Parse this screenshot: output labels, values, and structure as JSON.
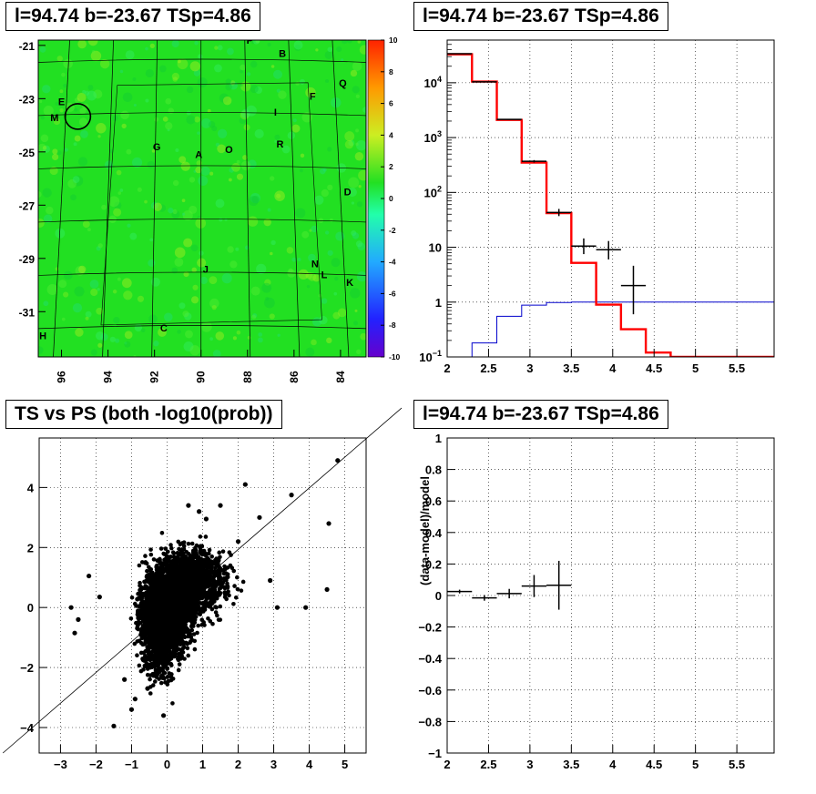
{
  "panels": {
    "map_title": "l=94.74 b=-23.67 TSp=4.86",
    "spectrum_title": "l=94.74 b=-23.67 TSp=4.86",
    "scatter_title": "TS vs PS (both -log10(prob))",
    "residual_title": "l=94.74 b=-23.67 TSp=4.86"
  },
  "colors": {
    "map_background": "#22e022",
    "model_line": "#ff0000",
    "background_line": "#0000cc",
    "data_points": "#000000"
  },
  "chart_data": [
    {
      "type": "heatmap",
      "title": "l=94.74 b=-23.67 TSp=4.86",
      "x_ticks": [
        "96",
        "94",
        "92",
        "90",
        "88",
        "86",
        "84"
      ],
      "x_tick_values": [
        96,
        94,
        92,
        90,
        88,
        86,
        84
      ],
      "xlim": [
        97.0,
        82.9
      ],
      "y_ticks": [
        "-21",
        "-23",
        "-25",
        "-27",
        "-29",
        "-31"
      ],
      "y_tick_values": [
        -21,
        -23,
        -25,
        -27,
        -29,
        -31
      ],
      "ylim": [
        -32.7,
        -20.8
      ],
      "colorbar_ticks": [
        "10",
        "8",
        "6",
        "4",
        "2",
        "0",
        "-2",
        "-4",
        "-6",
        "-8",
        "-10"
      ],
      "colorbar_range": [
        -10,
        10
      ],
      "source_labels": [
        {
          "text": "P",
          "l": 87.9,
          "b": -20.8
        },
        {
          "text": "B",
          "l": 86.5,
          "b": -21.3
        },
        {
          "text": "Q",
          "l": 83.9,
          "b": -22.4
        },
        {
          "text": "E",
          "l": 96.0,
          "b": -23.1
        },
        {
          "text": "F",
          "l": 85.2,
          "b": -22.9
        },
        {
          "text": "M",
          "l": 96.3,
          "b": -23.7
        },
        {
          "text": "I",
          "l": 86.8,
          "b": -23.5
        },
        {
          "text": "G",
          "l": 91.9,
          "b": -24.8
        },
        {
          "text": "R",
          "l": 86.6,
          "b": -24.7
        },
        {
          "text": "O",
          "l": 88.8,
          "b": -24.9
        },
        {
          "text": "A",
          "l": 90.1,
          "b": -25.1
        },
        {
          "text": "D",
          "l": 83.7,
          "b": -26.5
        },
        {
          "text": "N",
          "l": 85.1,
          "b": -29.2
        },
        {
          "text": "J",
          "l": 89.8,
          "b": -29.4
        },
        {
          "text": "L",
          "l": 84.7,
          "b": -29.6
        },
        {
          "text": "K",
          "l": 83.6,
          "b": -29.9
        },
        {
          "text": "C",
          "l": 91.6,
          "b": -31.6
        },
        {
          "text": "H",
          "l": 96.8,
          "b": -31.9
        }
      ],
      "marked_source": {
        "l": 95.3,
        "b": -23.67
      }
    },
    {
      "type": "line",
      "title": "l=94.74 b=-23.67 TSp=4.86",
      "y_scale": "log",
      "xlim": [
        2.0,
        5.95
      ],
      "ylim": [
        0.1,
        60000
      ],
      "x_ticks": [
        "2",
        "2.5",
        "3",
        "3.5",
        "4",
        "4.5",
        "5",
        "5.5"
      ],
      "x_tick_values": [
        2.0,
        2.5,
        3.0,
        3.5,
        4.0,
        4.5,
        5.0,
        5.5
      ],
      "y_ticks": [
        "10^-1",
        "1",
        "10",
        "10^2",
        "10^3",
        "10^4"
      ],
      "y_tick_values": [
        0.1,
        1,
        10,
        100,
        1000,
        10000
      ],
      "bin_edges": [
        2.0,
        2.3,
        2.6,
        2.9,
        3.2,
        3.5,
        3.8,
        4.1,
        4.4,
        4.7,
        5.0,
        5.3,
        5.6,
        5.95
      ],
      "series": [
        {
          "values": [
            33000,
            10500,
            2100,
            350,
            42,
            5.2,
            0.9,
            0.32,
            0.12,
            0.1,
            0.1,
            0.1,
            0.1
          ]
        },
        {
          "values": [
            0.05,
            0.18,
            0.55,
            0.88,
            0.98,
            1.0,
            1.0,
            1.0,
            1.0,
            1.0,
            1.0,
            1.0,
            1.0
          ]
        }
      ],
      "points": [
        {
          "x": 2.15,
          "y": 33800,
          "yerr_low": 180,
          "yerr_high": 180
        },
        {
          "x": 2.45,
          "y": 10400,
          "yerr_low": 100,
          "yerr_high": 100
        },
        {
          "x": 2.75,
          "y": 2150,
          "yerr_low": 45,
          "yerr_high": 45
        },
        {
          "x": 3.05,
          "y": 370,
          "yerr_low": 19,
          "yerr_high": 19
        },
        {
          "x": 3.35,
          "y": 43,
          "yerr_low": 6,
          "yerr_high": 7
        },
        {
          "x": 3.65,
          "y": 10.5,
          "yerr_low": 3,
          "yerr_high": 4
        },
        {
          "x": 3.95,
          "y": 9,
          "yerr_low": 3,
          "yerr_high": 4
        },
        {
          "x": 4.25,
          "y": 2,
          "yerr_low": 1.4,
          "yerr_high": 2.6
        }
      ]
    },
    {
      "type": "scatter",
      "title": "TS vs PS (both -log10(prob))",
      "xlim": [
        -3.6,
        5.6
      ],
      "ylim": [
        -4.85,
        5.65
      ],
      "x_ticks": [
        "−3",
        "−2",
        "−1",
        "0",
        "1",
        "2",
        "3",
        "4",
        "5"
      ],
      "x_tick_values": [
        -3,
        -2,
        -1,
        0,
        1,
        2,
        3,
        4,
        5
      ],
      "y_ticks": [
        "−4",
        "−2",
        "0",
        "2",
        "4"
      ],
      "y_tick_values": [
        -4,
        -2,
        0,
        2,
        4
      ],
      "diagonal": {
        "x1": -4.62,
        "y1": -4.85,
        "x2": 6.6,
        "y2": 6.65
      },
      "dense_core": [
        {
          "x": 0.0,
          "y": 0.0,
          "sx": 0.35,
          "sy": 0.6,
          "n": 2600
        },
        {
          "x": 0.7,
          "y": 0.9,
          "sx": 0.5,
          "sy": 0.55,
          "n": 1200
        },
        {
          "x": -0.2,
          "y": -1.0,
          "sx": 0.25,
          "sy": 0.7,
          "n": 700
        }
      ],
      "outliers": [
        [
          4.8,
          4.9
        ],
        [
          3.5,
          3.75
        ],
        [
          4.55,
          2.8
        ],
        [
          4.5,
          0.6
        ],
        [
          3.9,
          0.0
        ],
        [
          2.2,
          4.1
        ],
        [
          -1.5,
          -3.95
        ],
        [
          -2.7,
          0.0
        ],
        [
          -2.2,
          1.05
        ],
        [
          -2.6,
          -0.85
        ],
        [
          -1.0,
          -3.4
        ],
        [
          -0.1,
          -3.6
        ],
        [
          -1.2,
          -2.4
        ],
        [
          0.6,
          3.4
        ],
        [
          1.5,
          3.4
        ],
        [
          2.6,
          3.0
        ],
        [
          3.1,
          0.0
        ],
        [
          2.9,
          0.9
        ],
        [
          -1.9,
          0.35
        ],
        [
          -0.9,
          -3.05
        ],
        [
          1.1,
          2.95
        ],
        [
          0.9,
          3.2
        ],
        [
          -0.55,
          -2.7
        ],
        [
          2.0,
          2.2
        ],
        [
          -2.5,
          -0.4
        ]
      ]
    },
    {
      "type": "scatter",
      "title": "l=94.74 b=-23.67 TSp=4.86",
      "ylabel": "(data-model)/model",
      "xlim": [
        2.0,
        5.95
      ],
      "ylim": [
        -1.0,
        1.0
      ],
      "x_ticks": [
        "2",
        "2.5",
        "3",
        "3.5",
        "4",
        "4.5",
        "5",
        "5.5"
      ],
      "x_tick_values": [
        2.0,
        2.5,
        3.0,
        3.5,
        4.0,
        4.5,
        5.0,
        5.5
      ],
      "y_ticks": [
        "−1",
        "−0.8",
        "−0.6",
        "−0.4",
        "−0.2",
        "0",
        "0.2",
        "0.4",
        "0.6",
        "0.8",
        "1"
      ],
      "y_tick_values": [
        -1,
        -0.8,
        -0.6,
        -0.4,
        -0.2,
        0,
        0.2,
        0.4,
        0.6,
        0.8,
        1
      ],
      "points": [
        {
          "x": 2.15,
          "y": 0.025,
          "yerr": 0.012,
          "xerr": 0.15
        },
        {
          "x": 2.45,
          "y": -0.015,
          "yerr": 0.018,
          "xerr": 0.15
        },
        {
          "x": 2.75,
          "y": 0.012,
          "yerr": 0.03,
          "xerr": 0.15
        },
        {
          "x": 3.05,
          "y": 0.06,
          "yerr": 0.07,
          "xerr": 0.15
        },
        {
          "x": 3.35,
          "y": 0.065,
          "yerr": 0.155,
          "xerr": 0.15
        }
      ]
    }
  ]
}
